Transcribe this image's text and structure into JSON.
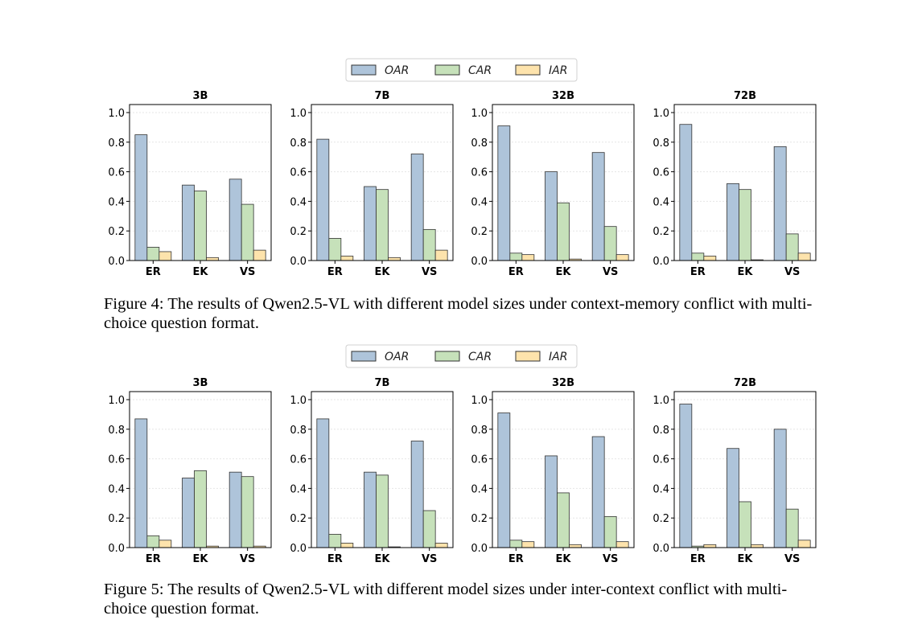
{
  "legend": [
    {
      "label": "OAR",
      "color": "#aec4da"
    },
    {
      "label": "CAR",
      "color": "#c6e1ba"
    },
    {
      "label": "IAR",
      "color": "#fde3ac"
    }
  ],
  "categories": [
    "ER",
    "EK",
    "VS"
  ],
  "yticks": [
    "0.0",
    "0.2",
    "0.4",
    "0.6",
    "0.8",
    "1.0"
  ],
  "chart_data": [
    {
      "type": "bar",
      "figure": "Figure 4",
      "ylim": [
        0,
        1.0
      ],
      "grid": true,
      "legend_position": "top-center",
      "categories": [
        "ER",
        "EK",
        "VS"
      ],
      "panels": [
        {
          "title": "3B",
          "series": [
            {
              "name": "OAR",
              "values": [
                0.85,
                0.51,
                0.55
              ]
            },
            {
              "name": "CAR",
              "values": [
                0.09,
                0.47,
                0.38
              ]
            },
            {
              "name": "IAR",
              "values": [
                0.06,
                0.02,
                0.07
              ]
            }
          ]
        },
        {
          "title": "7B",
          "series": [
            {
              "name": "OAR",
              "values": [
                0.82,
                0.5,
                0.72
              ]
            },
            {
              "name": "CAR",
              "values": [
                0.15,
                0.48,
                0.21
              ]
            },
            {
              "name": "IAR",
              "values": [
                0.03,
                0.02,
                0.07
              ]
            }
          ]
        },
        {
          "title": "32B",
          "series": [
            {
              "name": "OAR",
              "values": [
                0.91,
                0.6,
                0.73
              ]
            },
            {
              "name": "CAR",
              "values": [
                0.05,
                0.39,
                0.23
              ]
            },
            {
              "name": "IAR",
              "values": [
                0.04,
                0.01,
                0.04
              ]
            }
          ]
        },
        {
          "title": "72B",
          "series": [
            {
              "name": "OAR",
              "values": [
                0.92,
                0.52,
                0.77
              ]
            },
            {
              "name": "CAR",
              "values": [
                0.05,
                0.48,
                0.18
              ]
            },
            {
              "name": "IAR",
              "values": [
                0.03,
                0.005,
                0.05
              ]
            }
          ]
        }
      ]
    },
    {
      "type": "bar",
      "figure": "Figure 5",
      "ylim": [
        0,
        1.0
      ],
      "grid": true,
      "legend_position": "top-center",
      "categories": [
        "ER",
        "EK",
        "VS"
      ],
      "panels": [
        {
          "title": "3B",
          "series": [
            {
              "name": "OAR",
              "values": [
                0.87,
                0.47,
                0.51
              ]
            },
            {
              "name": "CAR",
              "values": [
                0.08,
                0.52,
                0.48
              ]
            },
            {
              "name": "IAR",
              "values": [
                0.05,
                0.01,
                0.01
              ]
            }
          ]
        },
        {
          "title": "7B",
          "series": [
            {
              "name": "OAR",
              "values": [
                0.87,
                0.51,
                0.72
              ]
            },
            {
              "name": "CAR",
              "values": [
                0.09,
                0.49,
                0.25
              ]
            },
            {
              "name": "IAR",
              "values": [
                0.03,
                0.005,
                0.03
              ]
            }
          ]
        },
        {
          "title": "32B",
          "series": [
            {
              "name": "OAR",
              "values": [
                0.91,
                0.62,
                0.75
              ]
            },
            {
              "name": "CAR",
              "values": [
                0.05,
                0.37,
                0.21
              ]
            },
            {
              "name": "IAR",
              "values": [
                0.04,
                0.02,
                0.04
              ]
            }
          ]
        },
        {
          "title": "72B",
          "series": [
            {
              "name": "OAR",
              "values": [
                0.97,
                0.67,
                0.8
              ]
            },
            {
              "name": "CAR",
              "values": [
                0.01,
                0.31,
                0.26
              ]
            },
            {
              "name": "IAR",
              "values": [
                0.02,
                0.02,
                0.05
              ]
            }
          ]
        }
      ]
    }
  ],
  "captions": {
    "figure4": "Figure 4: The results of Qwen2.5-VL with different model sizes under context-memory conflict with multi-choice question format.",
    "figure5": "Figure 5: The results of Qwen2.5-VL with different model sizes under inter-context conflict with multi-choice question format."
  }
}
